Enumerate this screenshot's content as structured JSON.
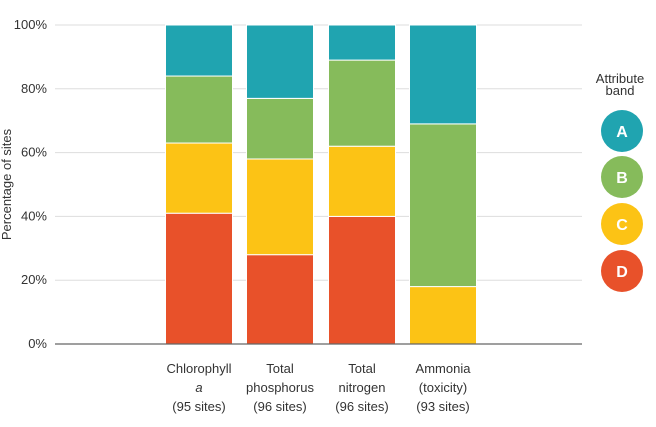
{
  "chart_data": {
    "type": "bar",
    "stacked": true,
    "normalized": true,
    "ylabel": "Percentage of sites",
    "ylim": [
      0,
      100
    ],
    "yticks": [
      "0%",
      "20%",
      "40%",
      "60%",
      "80%",
      "100%"
    ],
    "grid": true,
    "legend_title": "Attribute band",
    "legend_title_lines": [
      "Attribute",
      "band"
    ],
    "legend_position": "right",
    "categories": [
      {
        "lines": [
          "Chlorophyll",
          "a",
          "(95 sites)"
        ],
        "italic_line": 1
      },
      {
        "lines": [
          "Total",
          "phosphorus",
          "(96 sites)"
        ]
      },
      {
        "lines": [
          "Total",
          "nitrogen",
          "(96 sites)"
        ]
      },
      {
        "lines": [
          "Ammonia",
          "(toxicity)",
          "(93 sites)"
        ]
      }
    ],
    "series": [
      {
        "name": "D",
        "color": "#e8512a",
        "values": [
          41,
          28,
          40,
          0
        ]
      },
      {
        "name": "C",
        "color": "#fcc315",
        "values": [
          22,
          30,
          22,
          18
        ]
      },
      {
        "name": "B",
        "color": "#86bb5b",
        "values": [
          21,
          19,
          27,
          51
        ]
      },
      {
        "name": "A",
        "color": "#20a4b0",
        "values": [
          16,
          23,
          11,
          31
        ]
      }
    ],
    "legend_order": [
      "A",
      "B",
      "C",
      "D"
    ]
  }
}
